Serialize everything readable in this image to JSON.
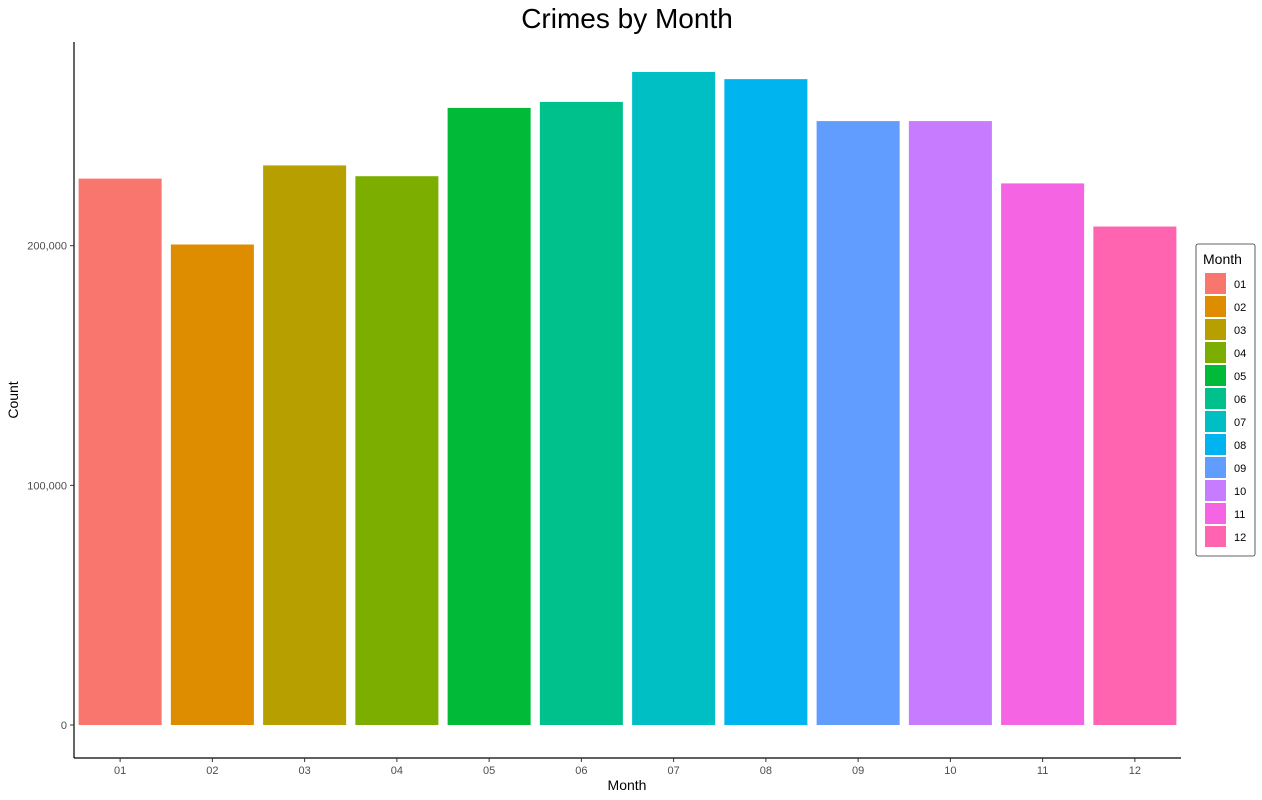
{
  "chart_data": {
    "type": "bar",
    "title": "Crimes by Month",
    "xlabel": "Month",
    "ylabel": "Count",
    "categories": [
      "01",
      "02",
      "03",
      "04",
      "05",
      "06",
      "07",
      "08",
      "09",
      "10",
      "11",
      "12"
    ],
    "values": [
      228000,
      200500,
      233500,
      229000,
      257500,
      260000,
      272500,
      269500,
      252000,
      252000,
      226000,
      208000
    ],
    "colors": [
      "#F8766D",
      "#DE8C00",
      "#B79F00",
      "#7CAE00",
      "#00BA38",
      "#00C08B",
      "#00BFC4",
      "#00B4F0",
      "#619CFF",
      "#C77CFF",
      "#F564E3",
      "#FF64B0"
    ],
    "ylim": [
      0,
      285000
    ],
    "yticks": [
      0,
      100000,
      200000
    ],
    "ytick_labels": [
      "0",
      "100,000",
      "200,000"
    ],
    "grid": false,
    "legend": {
      "title": "Month",
      "position": "right",
      "labels": [
        "01",
        "02",
        "03",
        "04",
        "05",
        "06",
        "07",
        "08",
        "09",
        "10",
        "11",
        "12"
      ]
    }
  }
}
